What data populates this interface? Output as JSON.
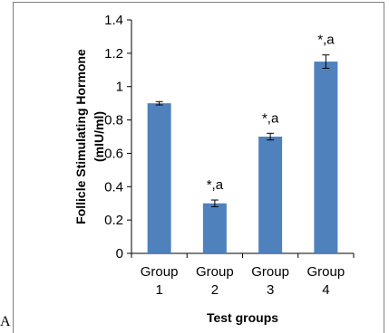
{
  "panel_label": "A",
  "chart_data": {
    "type": "bar",
    "categories": [
      [
        "Group",
        "1"
      ],
      [
        "Group",
        "2"
      ],
      [
        "Group",
        "3"
      ],
      [
        "Group",
        "4"
      ]
    ],
    "values": [
      0.9,
      0.3,
      0.7,
      1.15
    ],
    "errors": [
      0.01,
      0.02,
      0.02,
      0.04
    ],
    "data_labels": [
      "",
      "*,a",
      "*,a",
      "*,a"
    ],
    "ylabel_lines": [
      "Follicle Stimulating Hormone",
      "(mIU/ml)"
    ],
    "xlabel": "Test groups",
    "ylim": [
      0,
      1.4
    ],
    "yticks": [
      "0",
      "0.2",
      "0.4",
      "0.6",
      "0.8",
      "1",
      "1.2",
      "1.4"
    ],
    "ytick_values": [
      0,
      0.2,
      0.4,
      0.6,
      0.8,
      1.0,
      1.2,
      1.4
    ],
    "bar_color": "#4f81bd",
    "grid": false,
    "legend": "none"
  }
}
